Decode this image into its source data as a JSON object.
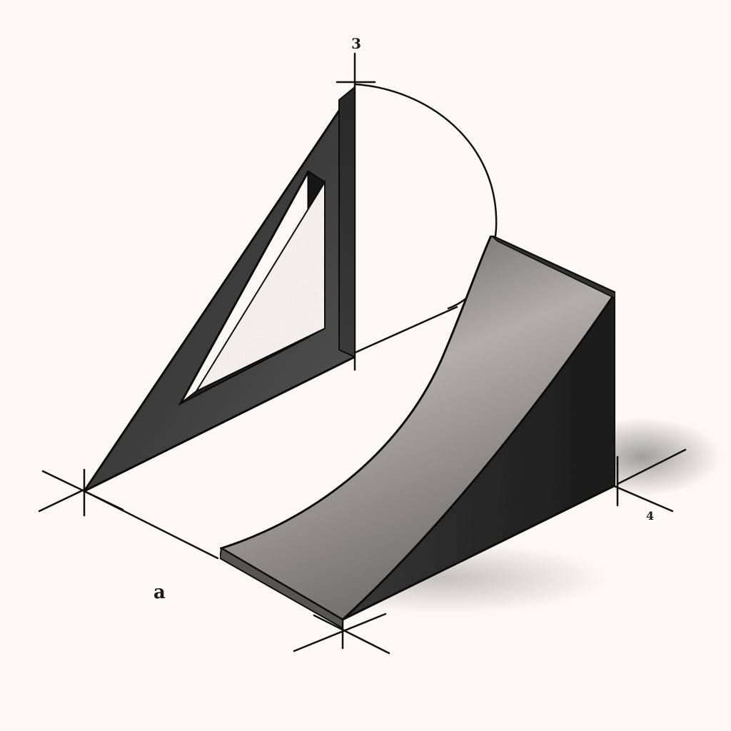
{
  "labels": {
    "top": "3",
    "right": "4",
    "left": "a"
  },
  "colors": {
    "paper": "#fcf8f3",
    "ink": "#111111",
    "graphite_dark": "#2b2b2b",
    "graphite_mid": "#4a4a4a",
    "graphite_light": "#8a8a8a"
  }
}
